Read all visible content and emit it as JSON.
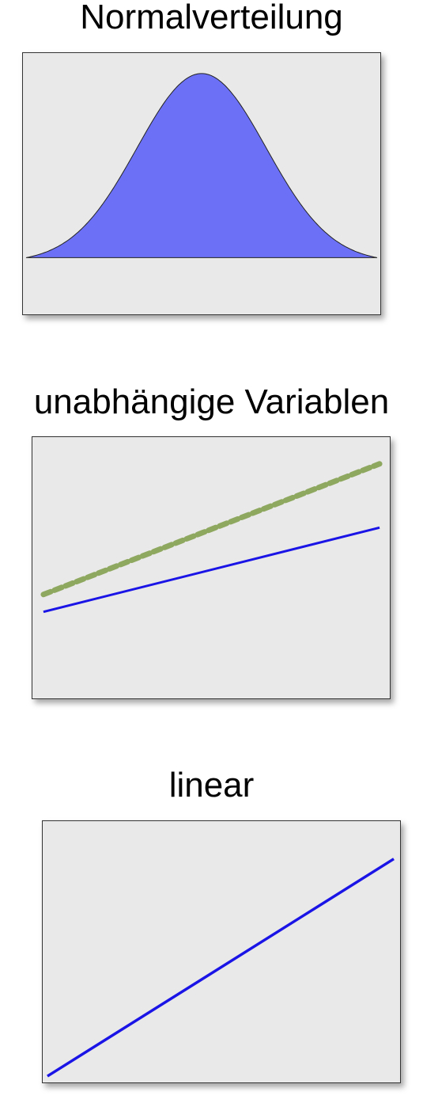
{
  "diagrams": [
    {
      "title": "Normalverteilung",
      "kind": "normal-distribution",
      "fill_color": "#6b70f7",
      "outline_color": "#222222"
    },
    {
      "title": "unabhängige Variablen",
      "kind": "parallel-lines",
      "lines": [
        {
          "style": "dashed",
          "color": "#8fa860"
        },
        {
          "style": "solid",
          "color": "#1a14e6"
        }
      ]
    },
    {
      "title": "linear",
      "kind": "single-line",
      "lines": [
        {
          "style": "solid",
          "color": "#1a14e6"
        }
      ]
    }
  ],
  "colors": {
    "panel_background": "#e9e9e9",
    "panel_border": "#333333"
  }
}
